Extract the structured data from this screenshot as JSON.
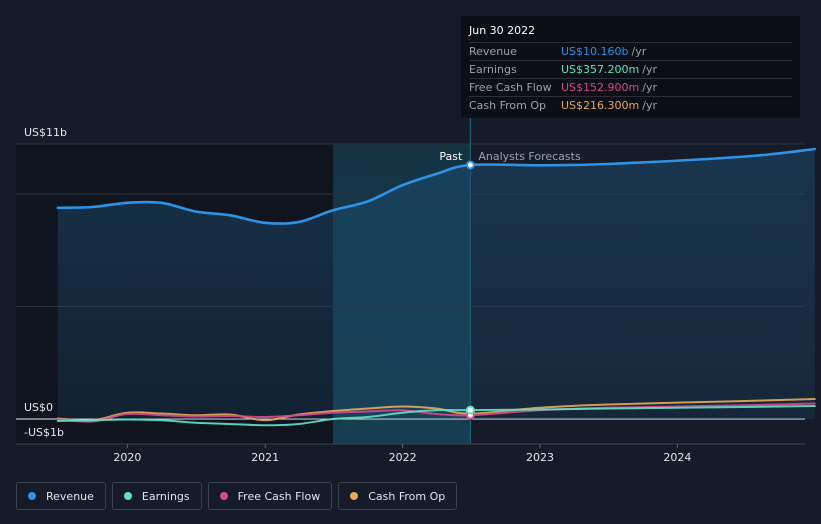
{
  "chart_data": {
    "type": "line",
    "y_axis_labels": [
      "US$11b",
      "US$0",
      "-US$1b"
    ],
    "ylim": [
      -1,
      11
    ],
    "x_tick_labels": [
      "2020",
      "2021",
      "2022",
      "2023",
      "2024"
    ],
    "divider": {
      "date": "2022-06-30",
      "past_label": "Past",
      "forecast_label": "Analysts Forecasts"
    },
    "series": [
      {
        "name": "Revenue",
        "color": "#2e93e6",
        "points": [
          [
            "2019-06-30",
            8.45
          ],
          [
            "2019-09-30",
            8.48
          ],
          [
            "2019-12-31",
            8.65
          ],
          [
            "2020-03-31",
            8.65
          ],
          [
            "2020-06-30",
            8.3
          ],
          [
            "2020-09-30",
            8.15
          ],
          [
            "2020-12-31",
            7.85
          ],
          [
            "2021-03-31",
            7.88
          ],
          [
            "2021-06-30",
            8.35
          ],
          [
            "2021-09-30",
            8.7
          ],
          [
            "2021-12-31",
            9.35
          ],
          [
            "2022-03-31",
            9.8
          ],
          [
            "2022-06-30",
            10.16
          ],
          [
            "2022-12-31",
            10.15
          ],
          [
            "2023-06-30",
            10.2
          ],
          [
            "2024-06-30",
            10.5
          ],
          [
            "2024-12-31",
            10.8
          ]
        ]
      },
      {
        "name": "Earnings",
        "color": "#5ee3c4",
        "points": [
          [
            "2019-06-30",
            -0.08
          ],
          [
            "2019-09-30",
            -0.05
          ],
          [
            "2019-12-31",
            -0.02
          ],
          [
            "2020-03-31",
            -0.05
          ],
          [
            "2020-06-30",
            -0.15
          ],
          [
            "2020-09-30",
            -0.2
          ],
          [
            "2020-12-31",
            -0.25
          ],
          [
            "2021-03-31",
            -0.2
          ],
          [
            "2021-06-30",
            0.0
          ],
          [
            "2021-09-30",
            0.08
          ],
          [
            "2021-12-31",
            0.25
          ],
          [
            "2022-03-31",
            0.35
          ],
          [
            "2022-06-30",
            0.357
          ],
          [
            "2022-12-31",
            0.38
          ],
          [
            "2023-06-30",
            0.42
          ],
          [
            "2024-06-30",
            0.48
          ],
          [
            "2024-12-31",
            0.52
          ]
        ]
      },
      {
        "name": "Free Cash Flow",
        "color": "#d44a8c",
        "points": [
          [
            "2019-06-30",
            -0.02
          ],
          [
            "2019-09-30",
            -0.1
          ],
          [
            "2019-12-31",
            0.2
          ],
          [
            "2020-03-31",
            0.15
          ],
          [
            "2020-06-30",
            0.1
          ],
          [
            "2020-09-30",
            0.12
          ],
          [
            "2020-12-31",
            0.08
          ],
          [
            "2021-03-31",
            0.15
          ],
          [
            "2021-06-30",
            0.25
          ],
          [
            "2021-09-30",
            0.3
          ],
          [
            "2021-12-31",
            0.35
          ],
          [
            "2022-03-31",
            0.2
          ],
          [
            "2022-06-30",
            0.153
          ],
          [
            "2022-12-31",
            0.35
          ],
          [
            "2023-06-30",
            0.45
          ],
          [
            "2024-06-30",
            0.55
          ],
          [
            "2024-12-31",
            0.62
          ]
        ]
      },
      {
        "name": "Cash From Op",
        "color": "#e8a85a",
        "points": [
          [
            "2019-06-30",
            0.02
          ],
          [
            "2019-09-30",
            -0.05
          ],
          [
            "2019-12-31",
            0.25
          ],
          [
            "2020-03-31",
            0.22
          ],
          [
            "2020-06-30",
            0.15
          ],
          [
            "2020-09-30",
            0.18
          ],
          [
            "2020-12-31",
            -0.05
          ],
          [
            "2021-03-31",
            0.18
          ],
          [
            "2021-06-30",
            0.32
          ],
          [
            "2021-09-30",
            0.42
          ],
          [
            "2021-12-31",
            0.5
          ],
          [
            "2022-03-31",
            0.42
          ],
          [
            "2022-06-30",
            0.216
          ],
          [
            "2022-12-31",
            0.45
          ],
          [
            "2023-06-30",
            0.58
          ],
          [
            "2024-06-30",
            0.72
          ],
          [
            "2024-12-31",
            0.8
          ]
        ]
      }
    ]
  },
  "tooltip": {
    "date": "Jun 30 2022",
    "rows": [
      {
        "label": "Revenue",
        "value": "US$10.160b",
        "unit": "/yr",
        "color": "#2e93e6"
      },
      {
        "label": "Earnings",
        "value": "US$357.200m",
        "unit": "/yr",
        "color": "#5ee3c4"
      },
      {
        "label": "Free Cash Flow",
        "value": "US$152.900m",
        "unit": "/yr",
        "color": "#d44a8c"
      },
      {
        "label": "Cash From Op",
        "value": "US$216.300m",
        "unit": "/yr",
        "color": "#e8a85a"
      }
    ]
  },
  "legend": [
    {
      "label": "Revenue",
      "color": "#2e93e6"
    },
    {
      "label": "Earnings",
      "color": "#5ee3c4"
    },
    {
      "label": "Free Cash Flow",
      "color": "#d44a8c"
    },
    {
      "label": "Cash From Op",
      "color": "#e8a85a"
    }
  ]
}
